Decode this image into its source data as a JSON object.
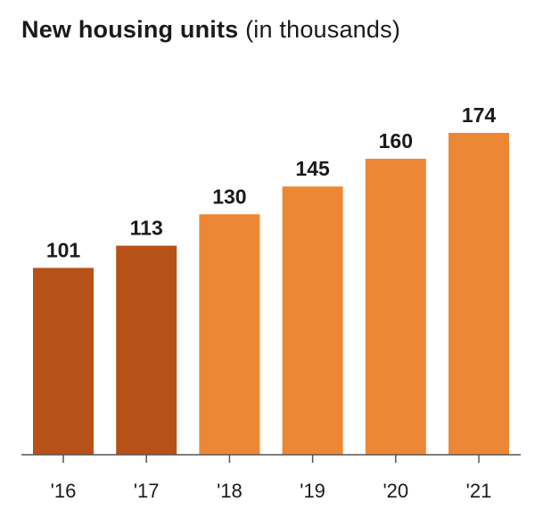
{
  "title": "New housing units",
  "subtitle": "(in thousands)",
  "colors": {
    "highlight": "#b85118",
    "default": "#ec8835",
    "axis": "#555555",
    "text": "#1a1a1a"
  },
  "chart_data": {
    "type": "bar",
    "title": "New housing units (in thousands)",
    "categories": [
      "'16",
      "'17",
      "'18",
      "'19",
      "'20",
      "'21"
    ],
    "values": [
      101,
      113,
      130,
      145,
      160,
      174
    ],
    "highlighted": [
      "'16",
      "'17"
    ],
    "xlabel": "",
    "ylabel": "",
    "ylim": [
      0,
      174
    ],
    "grid": false,
    "legend": "none"
  }
}
